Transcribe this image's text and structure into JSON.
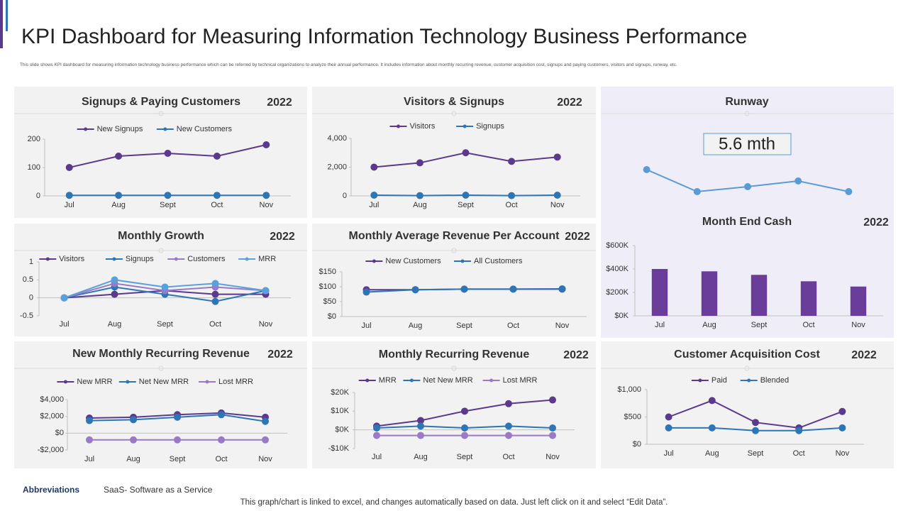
{
  "title": "KPI Dashboard for Measuring Information Technology Business Performance",
  "subtitle": "This slide shows KPI dashboard for measuring information technology business performance which can be referred by technical organizations to analyze their annual performance. It includes information about monthly recurring revenue, customer acquisition cost, signups and paying customers, visitors and signups, runway, etc.",
  "abbreviations": {
    "label": "Abbreviations",
    "text": "SaaS- Software as a Service"
  },
  "footer": "This graph/chart is linked to excel, and changes automatically based on data. Just left click on it and select “Edit Data”.",
  "chart_data": [
    {
      "type": "line",
      "title": "Signups & Paying Customers",
      "year": "2022",
      "categories": [
        "Jul",
        "Aug",
        "Sept",
        "Oct",
        "Nov"
      ],
      "series": [
        {
          "name": "New Signups",
          "color": "#5b3a8e",
          "values": [
            100,
            140,
            150,
            140,
            180
          ]
        },
        {
          "name": "New Customers",
          "color": "#2e75b6",
          "values": [
            2,
            2,
            2,
            2,
            2
          ]
        }
      ],
      "ylim": [
        0,
        200
      ],
      "yticks": [
        0,
        100,
        200
      ]
    },
    {
      "type": "line",
      "title": "Visitors & Signups",
      "year": "2022",
      "categories": [
        "Jul",
        "Aug",
        "Sept",
        "Oct",
        "Nov"
      ],
      "series": [
        {
          "name": "Visitors",
          "color": "#5b3a8e",
          "values": [
            2000,
            2300,
            3000,
            2400,
            2700
          ]
        },
        {
          "name": "Signups",
          "color": "#2e75b6",
          "values": [
            50,
            20,
            50,
            20,
            50
          ]
        }
      ],
      "ylim": [
        0,
        4000
      ],
      "yticks": [
        0,
        {
          "value": 2000,
          "label": "2,000"
        },
        {
          "value": 4000,
          "label": "4,000"
        }
      ]
    },
    {
      "type": "line",
      "title": "Runway",
      "headline": "5.6 mth",
      "color": "#5b9bd5",
      "values": [
        6.1,
        3.0,
        3.7,
        4.5,
        3.0
      ]
    },
    {
      "type": "bar",
      "title": "Month End Cash",
      "year": "2022",
      "color": "#6a3d9a",
      "categories": [
        "Jul",
        "Aug",
        "Sept",
        "Oct",
        "Nov"
      ],
      "values": [
        400000,
        380000,
        350000,
        295000,
        250000
      ],
      "ylim": [
        0,
        600000
      ],
      "yticks": [
        {
          "value": 0,
          "label": "$0K"
        },
        {
          "value": 200000,
          "label": "$200K"
        },
        {
          "value": 400000,
          "label": "$400K"
        },
        {
          "value": 600000,
          "label": "$600K"
        }
      ]
    },
    {
      "type": "line",
      "title": "Monthly Growth",
      "year": "2022",
      "categories": [
        "Jul",
        "Aug",
        "Sept",
        "Oct",
        "Nov"
      ],
      "series": [
        {
          "name": "Visitors",
          "color": "#5b3a8e",
          "values": [
            0,
            0.1,
            0.2,
            0.1,
            0.1
          ]
        },
        {
          "name": "Signups",
          "color": "#2e75b6",
          "values": [
            0,
            0.3,
            0.1,
            -0.1,
            0.2
          ]
        },
        {
          "name": "Customers",
          "color": "#9a79c8",
          "values": [
            0,
            0.4,
            0.2,
            0.3,
            0.2
          ]
        },
        {
          "name": "MRR",
          "color": "#5aa0dc",
          "values": [
            0,
            0.5,
            0.3,
            0.4,
            0.2
          ]
        }
      ],
      "ylim": [
        -0.5,
        1
      ],
      "yticks": [
        -0.5,
        0,
        0.5,
        1
      ]
    },
    {
      "type": "line",
      "title": "Monthly Average Revenue Per Account",
      "year": "2022",
      "categories": [
        "Jul",
        "Aug",
        "Sept",
        "Oct",
        "Nov"
      ],
      "series": [
        {
          "name": "New Customers",
          "color": "#5b3a8e",
          "values": [
            90,
            90,
            92,
            92,
            92
          ]
        },
        {
          "name": "All Customers",
          "color": "#2e75b6",
          "values": [
            82,
            90,
            92,
            92,
            93
          ]
        }
      ],
      "ylim": [
        0,
        150
      ],
      "yticks": [
        {
          "value": 0,
          "label": "$0"
        },
        {
          "value": 50,
          "label": "$50"
        },
        {
          "value": 100,
          "label": "$100"
        },
        {
          "value": 150,
          "label": "$150"
        }
      ]
    },
    {
      "type": "line",
      "title": "New Monthly Recurring Revenue",
      "year": "2022",
      "categories": [
        "Jul",
        "Aug",
        "Sept",
        "Oct",
        "Nov"
      ],
      "series": [
        {
          "name": "New MRR",
          "color": "#5b3a8e",
          "values": [
            1800,
            1900,
            2200,
            2400,
            1900
          ]
        },
        {
          "name": "Net New MRR",
          "color": "#2e75b6",
          "values": [
            1500,
            1600,
            1900,
            2200,
            1400
          ]
        },
        {
          "name": "Lost MRR",
          "color": "#9a79c8",
          "values": [
            -800,
            -800,
            -800,
            -800,
            -800
          ]
        }
      ],
      "ylim": [
        -2000,
        4000
      ],
      "yticks": [
        {
          "value": -2000,
          "label": "-$2,000"
        },
        {
          "value": 0,
          "label": "$0"
        },
        {
          "value": 2000,
          "label": "$2,000"
        },
        {
          "value": 4000,
          "label": "$4,000"
        }
      ]
    },
    {
      "type": "line",
      "title": "Monthly Recurring Revenue",
      "year": "2022",
      "categories": [
        "Jul",
        "Aug",
        "Sept",
        "Oct",
        "Nov"
      ],
      "series": [
        {
          "name": "MRR",
          "color": "#5b3a8e",
          "values": [
            2000,
            5000,
            10000,
            14000,
            16000
          ]
        },
        {
          "name": "Net New MRR",
          "color": "#2e75b6",
          "values": [
            1000,
            2000,
            1000,
            2000,
            1000
          ]
        },
        {
          "name": "Lost MRR",
          "color": "#9a79c8",
          "values": [
            -3000,
            -3000,
            -3000,
            -3000,
            -3000
          ]
        }
      ],
      "ylim": [
        -10000,
        20000
      ],
      "yticks": [
        {
          "value": -10000,
          "label": "-$10K"
        },
        {
          "value": 0,
          "label": "$0K"
        },
        {
          "value": 10000,
          "label": "$10K"
        },
        {
          "value": 20000,
          "label": "$20K"
        }
      ]
    },
    {
      "type": "line",
      "title": "Customer Acquisition Cost",
      "year": "2022",
      "categories": [
        "Jul",
        "Aug",
        "Sept",
        "Oct",
        "Nov"
      ],
      "series": [
        {
          "name": "Paid",
          "color": "#5b3a8e",
          "values": [
            500,
            800,
            400,
            300,
            600
          ]
        },
        {
          "name": "Blended",
          "color": "#2e75b6",
          "values": [
            300,
            300,
            250,
            250,
            300
          ]
        }
      ],
      "ylim": [
        0,
        1000
      ],
      "yticks": [
        {
          "value": 0,
          "label": "$0"
        },
        {
          "value": 500,
          "label": "$500"
        },
        {
          "value": 1000,
          "label": "$1,000"
        }
      ]
    }
  ]
}
